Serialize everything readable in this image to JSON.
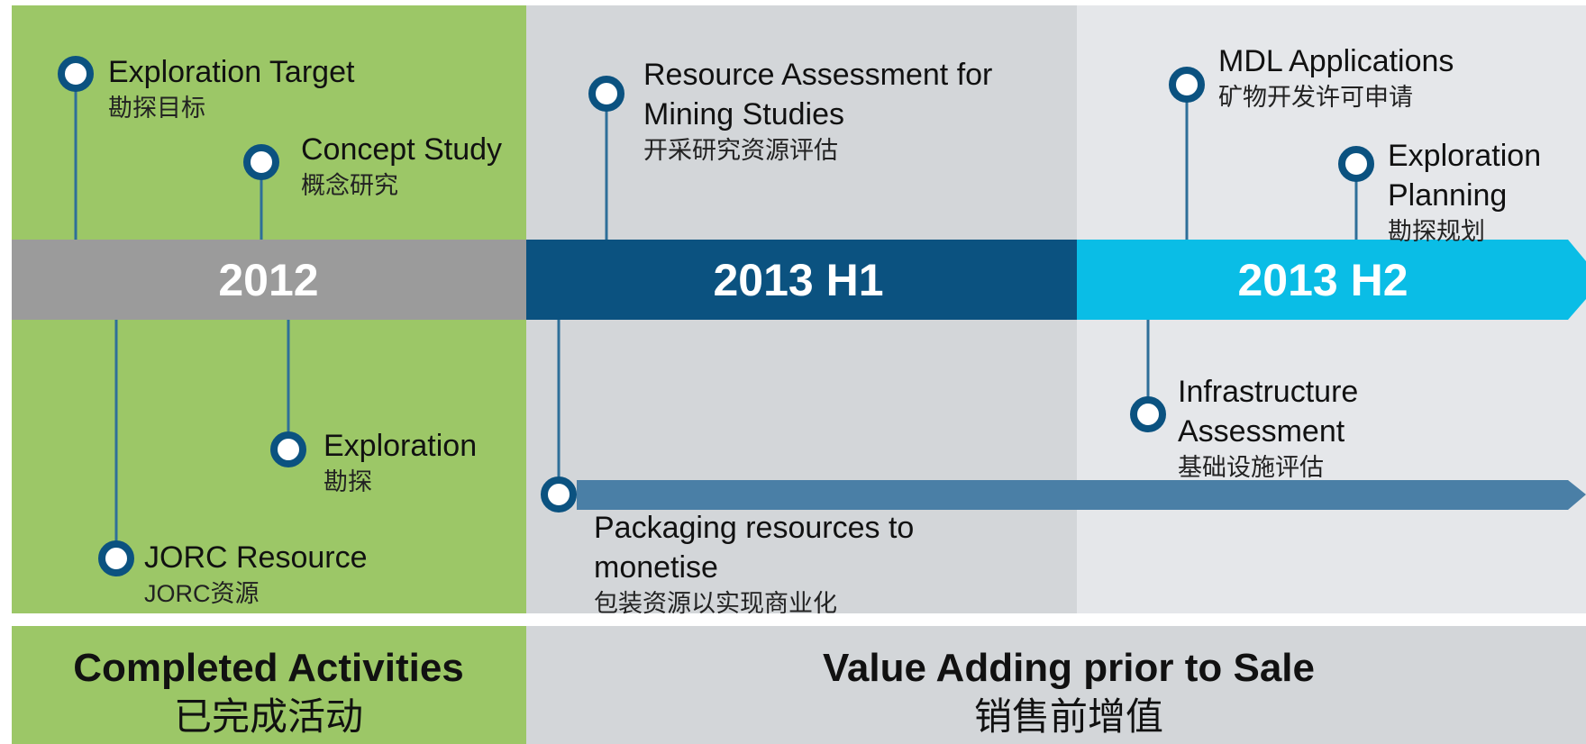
{
  "periods": [
    "2012",
    "2013 H1",
    "2013 H2"
  ],
  "milestones": [
    {
      "title": [
        "Exploration Target"
      ],
      "subtitle": "勘探目标"
    },
    {
      "title": [
        "Concept Study"
      ],
      "subtitle": "概念研究"
    },
    {
      "title": [
        "Resource Assessment for",
        "Mining Studies"
      ],
      "subtitle": "开采研究资源评估"
    },
    {
      "title": [
        "MDL Applications"
      ],
      "subtitle": "矿物开发许可申请"
    },
    {
      "title": [
        "Exploration",
        "Planning"
      ],
      "subtitle": "勘探规划"
    },
    {
      "title": [
        "Exploration"
      ],
      "subtitle": "勘探"
    },
    {
      "title": [
        "JORC Resource"
      ],
      "subtitle": "JORC资源"
    },
    {
      "title": [
        "Packaging resources to",
        "monetise"
      ],
      "subtitle": "包装资源以实现商业化"
    },
    {
      "title": [
        "Infrastructure",
        "Assessment"
      ],
      "subtitle": "基础设施评估"
    }
  ],
  "footer": [
    {
      "title": "Completed Activities",
      "subtitle": "已完成活动"
    },
    {
      "title": "Value Adding prior to Sale",
      "subtitle": "销售前增值"
    }
  ]
}
